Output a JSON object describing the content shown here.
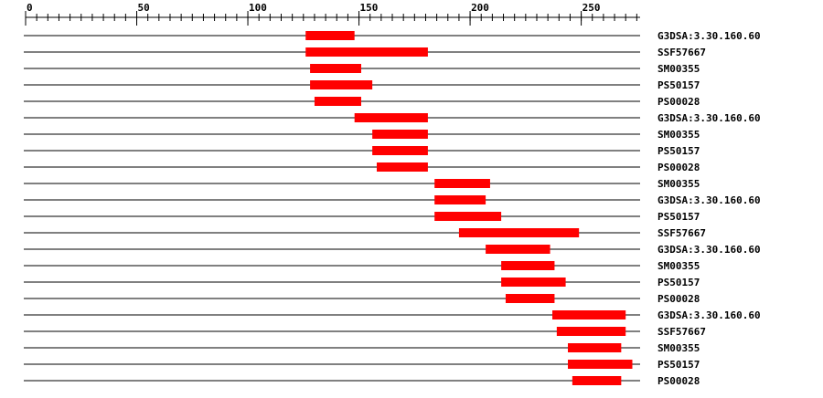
{
  "chart_data": {
    "type": "range",
    "color": "#ff0000",
    "xlim": [
      0,
      276.5
    ],
    "xticks": [
      0,
      50,
      100,
      150,
      200,
      250
    ],
    "xminorticks": [
      0,
      5,
      10,
      15,
      20,
      25,
      30,
      35,
      40,
      45,
      50,
      55,
      60,
      65,
      70,
      75,
      80,
      85,
      90,
      95,
      100,
      105,
      110,
      115,
      120,
      125,
      130,
      135,
      140,
      145,
      150,
      155,
      160,
      165,
      170,
      175,
      180,
      185,
      190,
      195,
      200,
      205,
      210,
      215,
      220,
      225,
      230,
      235,
      240,
      245,
      250,
      255,
      260,
      265,
      270,
      275
    ],
    "bars": [
      {
        "label": "G3DSA:3.30.160.60",
        "start": 126,
        "end": 148
      },
      {
        "label": "SSF57667",
        "start": 126,
        "end": 181
      },
      {
        "label": "SM00355",
        "start": 128,
        "end": 151
      },
      {
        "label": "PS50157",
        "start": 128,
        "end": 156
      },
      {
        "label": "PS00028",
        "start": 130,
        "end": 151
      },
      {
        "label": "G3DSA:3.30.160.60",
        "start": 148,
        "end": 181
      },
      {
        "label": "SM00355",
        "start": 156,
        "end": 181
      },
      {
        "label": "PS50157",
        "start": 156,
        "end": 181
      },
      {
        "label": "PS00028",
        "start": 158,
        "end": 181
      },
      {
        "label": "SM00355",
        "start": 184,
        "end": 209
      },
      {
        "label": "G3DSA:3.30.160.60",
        "start": 184,
        "end": 207
      },
      {
        "label": "PS50157",
        "start": 184,
        "end": 214
      },
      {
        "label": "SSF57667",
        "start": 195,
        "end": 249
      },
      {
        "label": "G3DSA:3.30.160.60",
        "start": 207,
        "end": 236
      },
      {
        "label": "SM00355",
        "start": 214,
        "end": 238
      },
      {
        "label": "PS50157",
        "start": 214,
        "end": 243
      },
      {
        "label": "PS00028",
        "start": 216,
        "end": 238
      },
      {
        "label": "G3DSA:3.30.160.60",
        "start": 237,
        "end": 270
      },
      {
        "label": "SSF57667",
        "start": 239,
        "end": 270
      },
      {
        "label": "SM00355",
        "start": 244,
        "end": 268
      },
      {
        "label": "PS50157",
        "start": 244,
        "end": 273
      },
      {
        "label": "PS00028",
        "start": 246,
        "end": 268
      }
    ]
  }
}
